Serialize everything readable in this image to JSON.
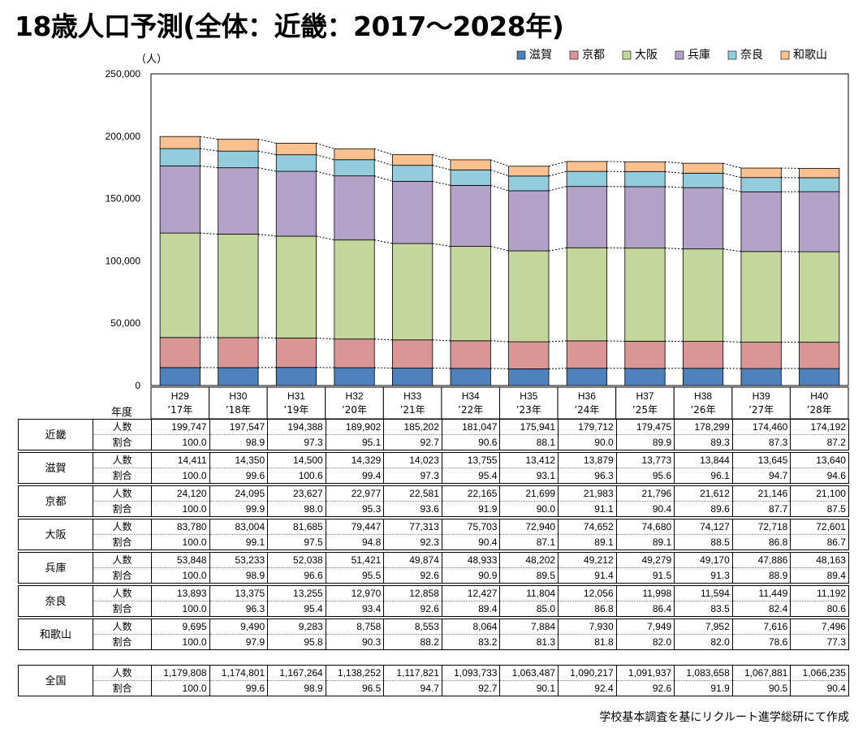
{
  "title": "18歳人口予測(全体：近畿：2017～2028年)",
  "source_note": "学校基本調査を基にリクルート進学総研にて作成",
  "year_header": "年度",
  "row_labels": {
    "count": "人数",
    "ratio": "割合"
  },
  "chart_data": {
    "type": "bar",
    "stacked": true,
    "categories": [
      [
        "H29",
        "’17年"
      ],
      [
        "H30",
        "’18年"
      ],
      [
        "H31",
        "’19年"
      ],
      [
        "H32",
        "’20年"
      ],
      [
        "H33",
        "’21年"
      ],
      [
        "H34",
        "’22年"
      ],
      [
        "H35",
        "’23年"
      ],
      [
        "H36",
        "’24年"
      ],
      [
        "H37",
        "’25年"
      ],
      [
        "H38",
        "’26年"
      ],
      [
        "H39",
        "’27年"
      ],
      [
        "H40",
        "’28年"
      ]
    ],
    "unit_label": "（人）",
    "ylim": [
      0,
      250000
    ],
    "yticks": [
      0,
      50000,
      100000,
      150000,
      200000,
      250000
    ],
    "ytick_labels": [
      "0",
      "50,000",
      "100,000",
      "150,000",
      "200,000",
      "250,000"
    ],
    "legend_position": "top-right",
    "series": [
      {
        "name": "滋賀",
        "color": "#4f81bd",
        "values": [
          14411,
          14350,
          14500,
          14329,
          14023,
          13755,
          13412,
          13879,
          13773,
          13844,
          13645,
          13640
        ]
      },
      {
        "name": "京都",
        "color": "#d99694",
        "values": [
          24120,
          24095,
          23627,
          22977,
          22581,
          22165,
          21699,
          21983,
          21796,
          21612,
          21146,
          21100
        ]
      },
      {
        "name": "大阪",
        "color": "#c3d69b",
        "values": [
          83780,
          83004,
          81685,
          79447,
          77313,
          75703,
          72940,
          74652,
          74680,
          74127,
          72718,
          72601
        ]
      },
      {
        "name": "兵庫",
        "color": "#b3a2c7",
        "values": [
          53848,
          53233,
          52038,
          51421,
          49874,
          48933,
          48202,
          49212,
          49279,
          49170,
          47886,
          48163
        ]
      },
      {
        "name": "奈良",
        "color": "#93cddd",
        "values": [
          13893,
          13375,
          13255,
          12970,
          12858,
          12427,
          11804,
          12056,
          11998,
          11594,
          11449,
          11192
        ]
      },
      {
        "name": "和歌山",
        "color": "#fac090",
        "values": [
          9695,
          9490,
          9283,
          8758,
          8553,
          8064,
          7884,
          7930,
          7949,
          7952,
          7616,
          7496
        ]
      }
    ]
  },
  "table": {
    "rows": [
      {
        "pref": "近畿",
        "counts": [
          "199,747",
          "197,547",
          "194,388",
          "189,902",
          "185,202",
          "181,047",
          "175,941",
          "179,712",
          "179,475",
          "178,299",
          "174,460",
          "174,192"
        ],
        "ratios": [
          "100.0",
          "98.9",
          "97.3",
          "95.1",
          "92.7",
          "90.6",
          "88.1",
          "90.0",
          "89.9",
          "89.3",
          "87.3",
          "87.2"
        ]
      },
      {
        "pref": "滋賀",
        "counts": [
          "14,411",
          "14,350",
          "14,500",
          "14,329",
          "14,023",
          "13,755",
          "13,412",
          "13,879",
          "13,773",
          "13,844",
          "13,645",
          "13,640"
        ],
        "ratios": [
          "100.0",
          "99.6",
          "100.6",
          "99.4",
          "97.3",
          "95.4",
          "93.1",
          "96.3",
          "95.6",
          "96.1",
          "94.7",
          "94.6"
        ]
      },
      {
        "pref": "京都",
        "counts": [
          "24,120",
          "24,095",
          "23,627",
          "22,977",
          "22,581",
          "22,165",
          "21,699",
          "21,983",
          "21,796",
          "21,612",
          "21,146",
          "21,100"
        ],
        "ratios": [
          "100.0",
          "99.9",
          "98.0",
          "95.3",
          "93.6",
          "91.9",
          "90.0",
          "91.1",
          "90.4",
          "89.6",
          "87.7",
          "87.5"
        ]
      },
      {
        "pref": "大阪",
        "counts": [
          "83,780",
          "83,004",
          "81,685",
          "79,447",
          "77,313",
          "75,703",
          "72,940",
          "74,652",
          "74,680",
          "74,127",
          "72,718",
          "72,601"
        ],
        "ratios": [
          "100.0",
          "99.1",
          "97.5",
          "94.8",
          "92.3",
          "90.4",
          "87.1",
          "89.1",
          "89.1",
          "88.5",
          "86.8",
          "86.7"
        ]
      },
      {
        "pref": "兵庫",
        "counts": [
          "53,848",
          "53,233",
          "52,038",
          "51,421",
          "49,874",
          "48,933",
          "48,202",
          "49,212",
          "49,279",
          "49,170",
          "47,886",
          "48,163"
        ],
        "ratios": [
          "100.0",
          "98.9",
          "96.6",
          "95.5",
          "92.6",
          "90.9",
          "89.5",
          "91.4",
          "91.5",
          "91.3",
          "88.9",
          "89.4"
        ]
      },
      {
        "pref": "奈良",
        "counts": [
          "13,893",
          "13,375",
          "13,255",
          "12,970",
          "12,858",
          "12,427",
          "11,804",
          "12,056",
          "11,998",
          "11,594",
          "11,449",
          "11,192"
        ],
        "ratios": [
          "100.0",
          "96.3",
          "95.4",
          "93.4",
          "92.6",
          "89.4",
          "85.0",
          "86.8",
          "86.4",
          "83.5",
          "82.4",
          "80.6"
        ]
      },
      {
        "pref": "和歌山",
        "counts": [
          "9,695",
          "9,490",
          "9,283",
          "8,758",
          "8,553",
          "8,064",
          "7,884",
          "7,930",
          "7,949",
          "7,952",
          "7,616",
          "7,496"
        ],
        "ratios": [
          "100.0",
          "97.9",
          "95.8",
          "90.3",
          "88.2",
          "83.2",
          "81.3",
          "81.8",
          "82.0",
          "82.0",
          "78.6",
          "77.3"
        ]
      },
      {
        "pref": "全国",
        "counts": [
          "1,179,808",
          "1,174,801",
          "1,167,264",
          "1,138,252",
          "1,117,821",
          "1,093,733",
          "1,063,487",
          "1,090,217",
          "1,091,937",
          "1,083,658",
          "1,067,881",
          "1,066,235"
        ],
        "ratios": [
          "100.0",
          "99.6",
          "98.9",
          "96.5",
          "94.7",
          "92.7",
          "90.1",
          "92.4",
          "92.6",
          "91.9",
          "90.5",
          "90.4"
        ]
      }
    ]
  }
}
